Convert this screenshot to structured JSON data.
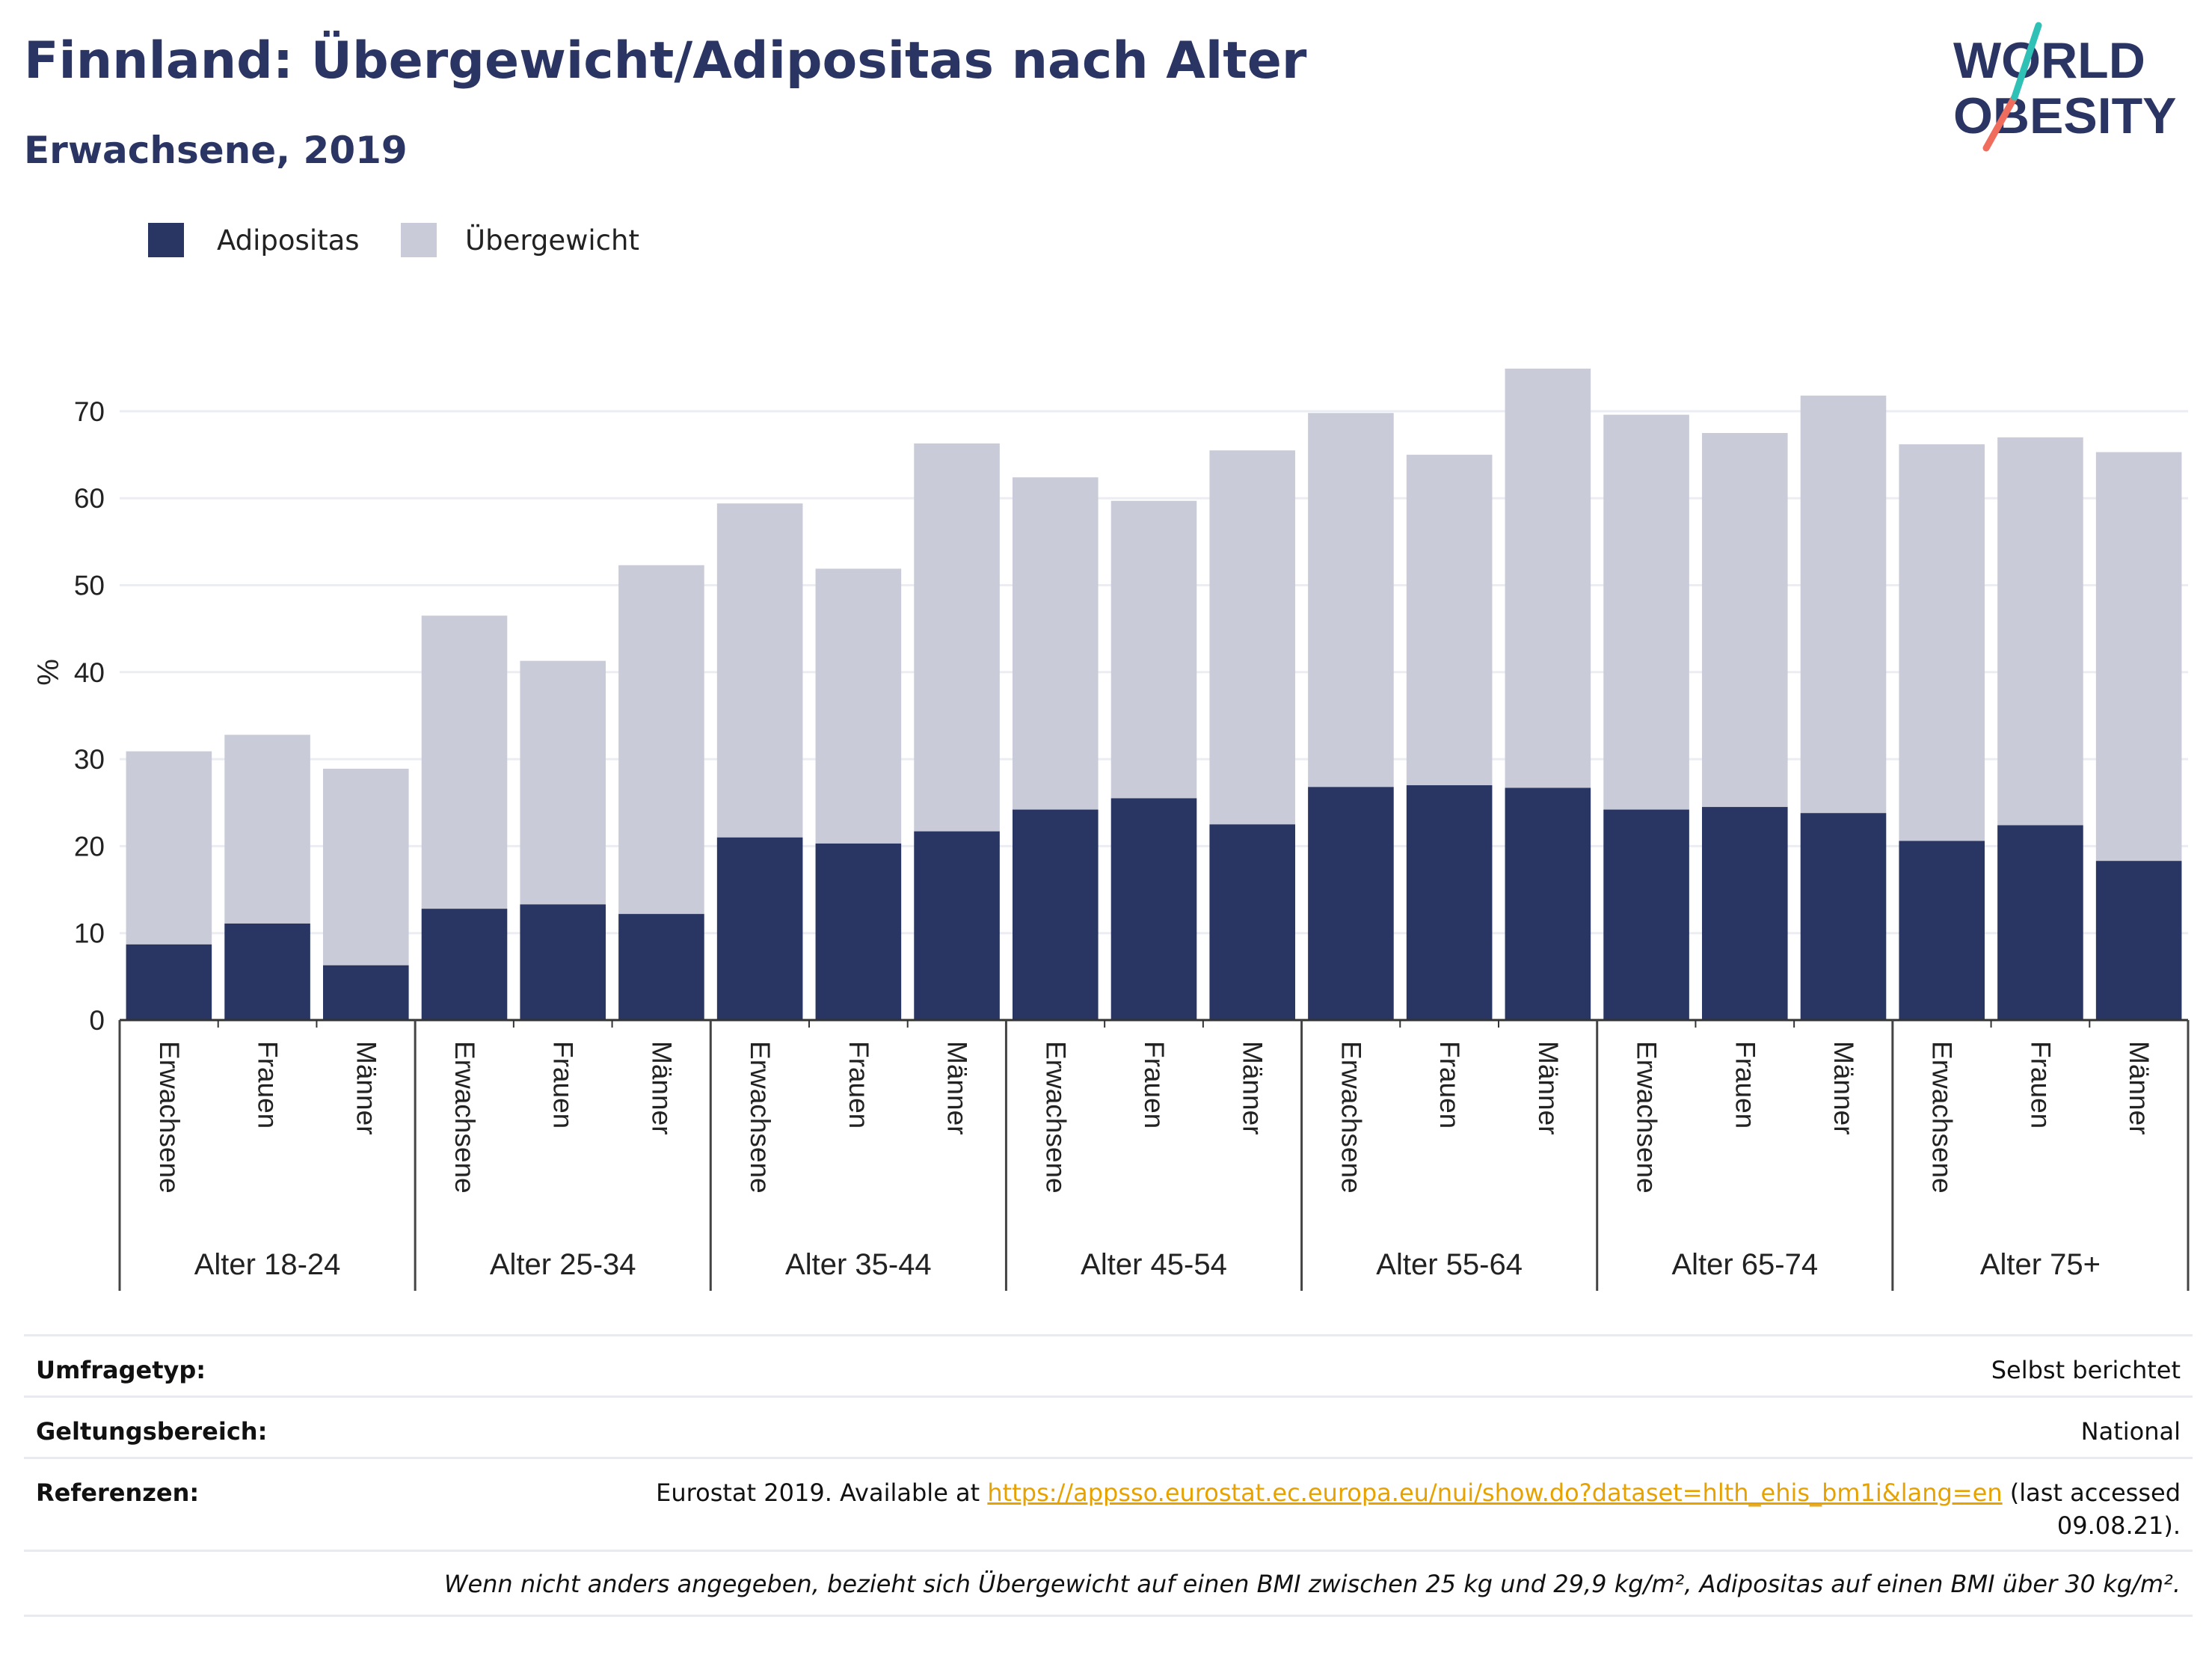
{
  "header": {
    "title": "Finnland: Übergewicht/Adipositas nach Alter",
    "subtitle": "Erwachsene, 2019"
  },
  "logo": {
    "line1": "WORLD",
    "line2": "OBESITY"
  },
  "colors": {
    "obesity": "#293562",
    "overweight": "#c9ccd8",
    "title": "#2a3563",
    "link": "#e8a200",
    "logo_teal": "#2fc1b5",
    "logo_coral": "#f06c5d"
  },
  "legend": [
    {
      "label": "Adipositas",
      "color": "#293562"
    },
    {
      "label": "Übergewicht",
      "color": "#c9ccd8"
    }
  ],
  "chart_data": {
    "type": "bar",
    "stacked": true,
    "ylabel": "%",
    "ylim": [
      0,
      80
    ],
    "yticks": [
      0,
      10,
      20,
      30,
      40,
      50,
      60,
      70
    ],
    "grid": true,
    "legend_position": "top-left",
    "groups": [
      "Alter 18-24",
      "Alter 25-34",
      "Alter 35-44",
      "Alter 45-54",
      "Alter 55-64",
      "Alter 65-74",
      "Alter 75+"
    ],
    "subcategories": [
      "Erwachsene",
      "Frauen",
      "Männer"
    ],
    "series": [
      {
        "name": "Adipositas",
        "values": [
          8.7,
          11.1,
          6.3,
          12.8,
          13.3,
          12.2,
          21.0,
          20.3,
          21.7,
          24.2,
          25.5,
          22.5,
          26.8,
          27.0,
          26.7,
          24.2,
          24.5,
          23.8,
          20.6,
          22.4,
          18.3
        ]
      },
      {
        "name": "Übergewicht",
        "values": [
          22.2,
          21.7,
          22.6,
          33.7,
          28.0,
          40.1,
          38.4,
          31.6,
          44.6,
          38.2,
          34.2,
          43.0,
          43.0,
          38.0,
          48.2,
          45.4,
          43.0,
          48.0,
          45.6,
          44.6,
          47.0
        ]
      }
    ]
  },
  "meta": {
    "survey_label": "Umfragetyp:",
    "survey_value": "Selbst berichtet",
    "scope_label": "Geltungsbereich:",
    "scope_value": "National",
    "refs_label": "Referenzen:",
    "refs_prefix": "Eurostat 2019. Available at ",
    "refs_link": "https://appsso.eurostat.ec.europa.eu/nui/show.do?dataset=hlth_ehis_bm1i&lang=en",
    "refs_suffix": " (last accessed",
    "refs_date": "09.08.21).",
    "footnote": "Wenn nicht anders angegeben, bezieht sich Übergewicht auf einen BMI zwischen 25 kg und 29,9 kg/m², Adipositas auf einen BMI über 30 kg/m²."
  }
}
